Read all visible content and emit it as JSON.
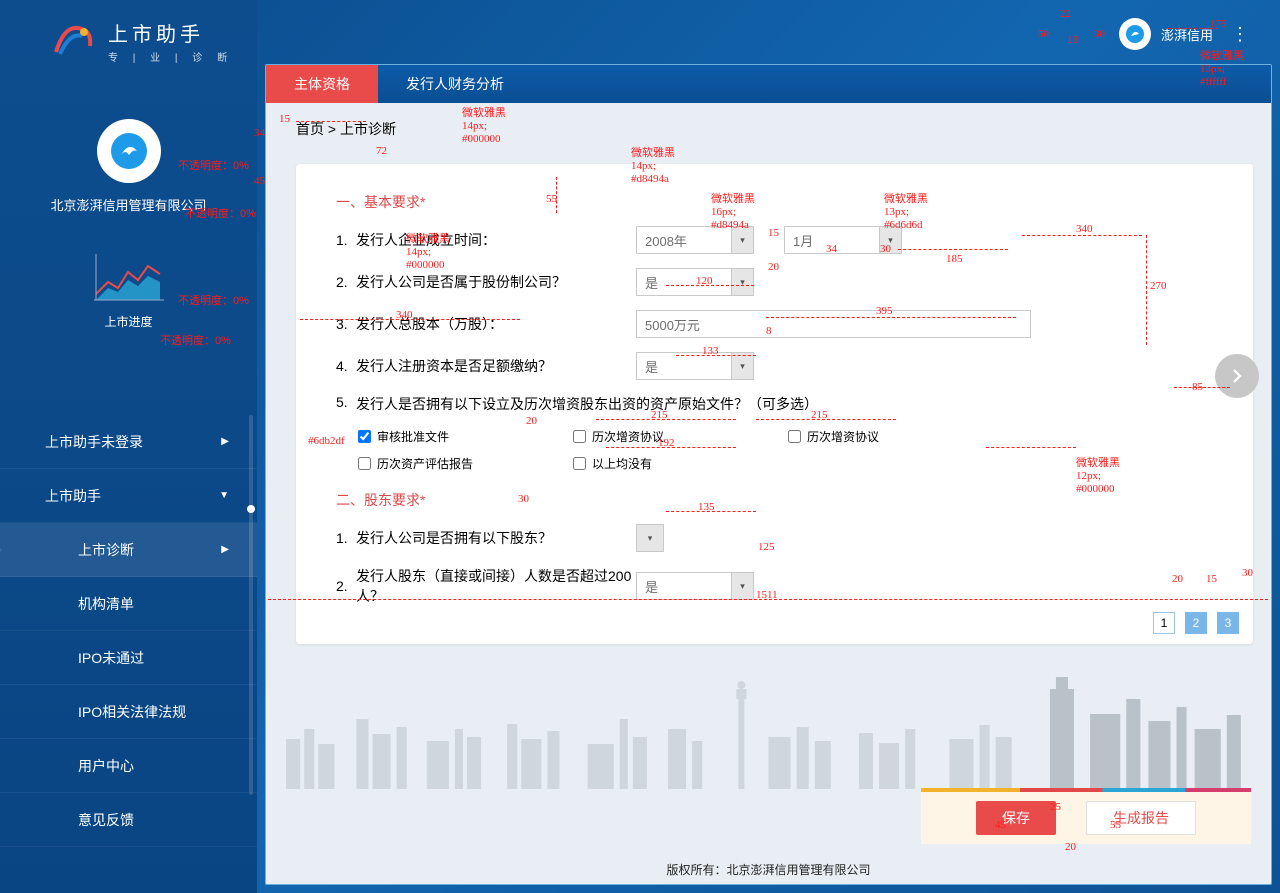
{
  "brand": {
    "title": "上市助手",
    "sub": "专 | 业 | 诊   断"
  },
  "company": {
    "name": "北京澎湃信用管理有限公司"
  },
  "progress": {
    "label": "上市进度"
  },
  "topbar": {
    "username": "澎湃信用"
  },
  "tabs": [
    "主体资格",
    "发行人财务分析"
  ],
  "crumb": {
    "home": "首页",
    "sep": ">",
    "cur": "上市诊断"
  },
  "section1": {
    "title": "一、基本要求",
    "star": "*"
  },
  "q1": {
    "n": "1.",
    "label": "发行人企业成立时间：",
    "year": "2008年",
    "month": "1月"
  },
  "q2": {
    "n": "2.",
    "label": "发行人公司是否属于股份制公司？",
    "val": "是"
  },
  "q3": {
    "n": "3.",
    "label": "发行人总股本（万股）：",
    "val": "5000万元"
  },
  "q4": {
    "n": "4.",
    "label": "发行人注册资本是否足额缴纳？",
    "val": "是"
  },
  "q5": {
    "n": "5.",
    "label": "发行人是否拥有以下设立及历次增资股东出资的资产原始文件？（可多选）",
    "opts": [
      "审核批准文件",
      "历次增资协议",
      "历次增资协议",
      "历次资产评估报告",
      "以上均没有"
    ]
  },
  "section2": {
    "title": "二、股东要求",
    "star": "*"
  },
  "q6": {
    "n": "1.",
    "label": "发行人公司是否拥有以下股东？"
  },
  "q7": {
    "n": "2.",
    "label": "发行人股东（直接或间接）人数是否超过200人？",
    "val": "是"
  },
  "pager": [
    "1",
    "2",
    "3"
  ],
  "nav": [
    {
      "t": "上市助手未登录",
      "caret": "▶"
    },
    {
      "t": "上市助手",
      "caret": "▼"
    },
    {
      "t": "上市诊断",
      "caret": "▶",
      "sub": true,
      "active": true
    },
    {
      "t": "机构清单",
      "sub": true
    },
    {
      "t": "IPO未通过",
      "sub": true
    },
    {
      "t": "IPO相关法律法规",
      "sub": true
    },
    {
      "t": "用户中心",
      "sub": true
    },
    {
      "t": "意见反馈",
      "sub": true
    }
  ],
  "actions": {
    "save": "保存",
    "report": "生成报告"
  },
  "footer": "版权所有：北京澎湃信用管理有限公司",
  "anno": {
    "fontNote": "微软雅黑\n14px;\n#000000",
    "fontRed": "微软雅黑\n14px;\n#d8494a",
    "fontQ": "微软雅黑\n16px;\n#d8494a",
    "fontSel": "微软雅黑\n13px;\n#6d6d6d",
    "fontChk": "微软雅黑\n12px;\n#000000",
    "userFont": "微软雅黑\n13px;\n#ffffff",
    "border": "#6db2df",
    "op0": "不透明度：0%",
    "d15": "15",
    "d34": "34",
    "d45": "45",
    "d72": "72",
    "d55": "55",
    "d340": "340",
    "d120": "120",
    "d133": "133",
    "d20m": "20",
    "d8": "8",
    "d395": "395",
    "d185": "185",
    "d30": "30",
    "d270": "270",
    "d85": "85",
    "d215": "215",
    "d192": "192",
    "d135": "135",
    "d125": "125",
    "d1511": "1511",
    "d20b": "20",
    "d15b": "15",
    "d30b": "30",
    "d25": "25",
    "d45b": "45",
    "d55b": "55",
    "d20c": "20",
    "d175": "175",
    "d22": "22",
    "d50": "50",
    "d30t": "30",
    "d13": "13"
  }
}
